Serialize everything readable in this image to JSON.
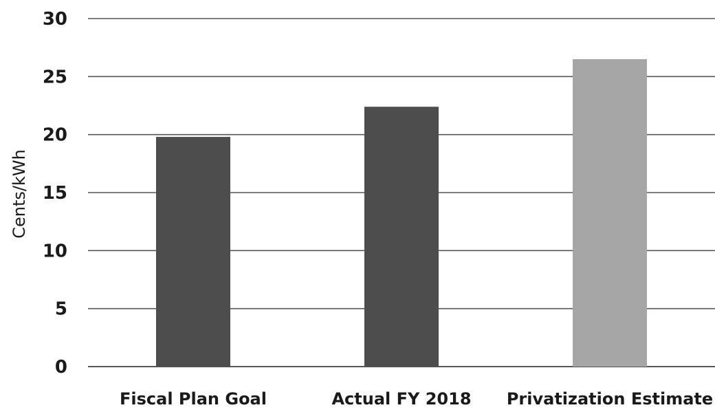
{
  "chart_data": {
    "type": "bar",
    "categories": [
      "Fiscal Plan Goal",
      "Actual FY 2018",
      "Privatization Estimate"
    ],
    "values": [
      19.8,
      22.4,
      26.5
    ],
    "bar_colors": [
      "#4d4d4d",
      "#4d4d4d",
      "#a6a6a6"
    ],
    "ylabel": "Cents/kWh",
    "ylim": [
      0,
      30
    ],
    "yticks": [
      "0",
      "5",
      "10",
      "15",
      "20",
      "25",
      "30"
    ],
    "grid": true,
    "legend": "none",
    "gridline_color": "#555555"
  }
}
